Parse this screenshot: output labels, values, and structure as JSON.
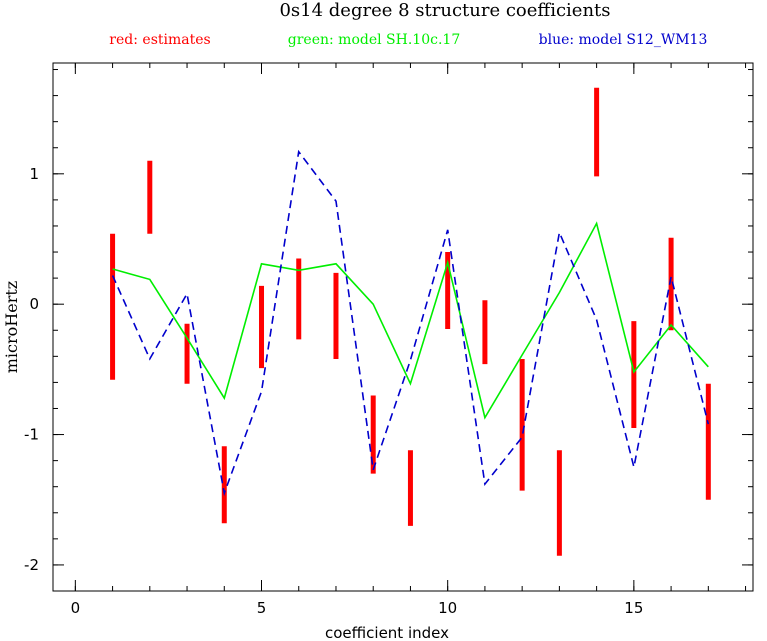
{
  "chart_data": {
    "type": "line",
    "title": "0s14 degree 8 structure coefficients",
    "legend": [
      {
        "text": "red: estimates",
        "color": "#ff0000"
      },
      {
        "text": "green: model SH.10c.17",
        "color": "#00ee00"
      },
      {
        "text": "blue: model S12_WM13",
        "color": "#0000cc"
      }
    ],
    "xlabel": "coefficient index",
    "ylabel": "microHertz",
    "xlim": [
      -0.6,
      18.2
    ],
    "ylim": [
      -2.2,
      1.85
    ],
    "xticks": [
      0,
      5,
      10,
      15
    ],
    "yticks": [
      -2,
      -1,
      0,
      1
    ],
    "x_minor_step": 1,
    "y_minor_step": 0.2,
    "estimates": {
      "name": "estimates",
      "color": "#ff0000",
      "x": [
        1,
        2,
        3,
        4,
        5,
        6,
        7,
        8,
        9,
        10,
        11,
        12,
        13,
        14,
        15,
        16,
        17
      ],
      "low": [
        -0.58,
        0.54,
        -0.61,
        -1.68,
        -0.49,
        -0.27,
        -0.42,
        -1.3,
        -1.7,
        -0.19,
        -0.46,
        -1.43,
        -1.93,
        0.98,
        -0.95,
        -0.2,
        -1.5
      ],
      "high": [
        0.54,
        1.1,
        -0.15,
        -1.09,
        0.14,
        0.35,
        0.24,
        -0.7,
        -1.12,
        0.4,
        0.03,
        -0.42,
        -1.12,
        1.66,
        -0.13,
        0.51,
        -0.61
      ]
    },
    "series": [
      {
        "name": "model SH.10c.17",
        "color": "#00ee00",
        "style": "solid",
        "x": [
          1,
          2,
          3,
          4,
          5,
          6,
          7,
          8,
          9,
          10,
          11,
          12,
          13,
          14,
          15,
          16,
          17
        ],
        "values": [
          0.27,
          0.19,
          -0.26,
          -0.72,
          0.31,
          0.26,
          0.31,
          0.0,
          -0.61,
          0.32,
          -0.87,
          -0.39,
          0.09,
          0.62,
          -0.52,
          -0.16,
          -0.48
        ]
      },
      {
        "name": "model S12_WM13",
        "color": "#0000cc",
        "style": "dashed",
        "x": [
          1,
          2,
          3,
          4,
          5,
          6,
          7,
          8,
          9,
          10,
          11,
          12,
          13,
          14,
          15,
          16,
          17
        ],
        "values": [
          0.22,
          -0.42,
          0.08,
          -1.45,
          -0.67,
          1.17,
          0.79,
          -1.27,
          -0.43,
          0.57,
          -1.38,
          -1.02,
          0.55,
          -0.12,
          -1.25,
          0.21,
          -0.92
        ]
      }
    ],
    "grid": false
  }
}
